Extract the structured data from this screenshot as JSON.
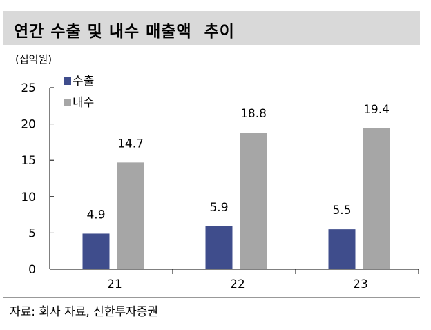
{
  "header": {
    "title": "연간 수출 및 내수 매출액  추이"
  },
  "unit_label": "(십억원)",
  "source": "자료: 회사 자료, 신한투자증권",
  "chart_data": {
    "type": "bar",
    "categories": [
      "21",
      "22",
      "23"
    ],
    "series": [
      {
        "name": "수출",
        "values": [
          4.9,
          5.9,
          5.5
        ],
        "color": "#3f4d8c"
      },
      {
        "name": "내수",
        "values": [
          14.7,
          18.8,
          19.4
        ],
        "color": "#a6a6a6"
      }
    ],
    "data_labels": [
      [
        "4.9",
        "5.9",
        "5.5"
      ],
      [
        "14.7",
        "18.8",
        "19.4"
      ]
    ],
    "ylim": [
      0,
      25
    ],
    "yticks": [
      0,
      5,
      10,
      15,
      20,
      25
    ],
    "legend_position": "top-left",
    "grid": false
  }
}
